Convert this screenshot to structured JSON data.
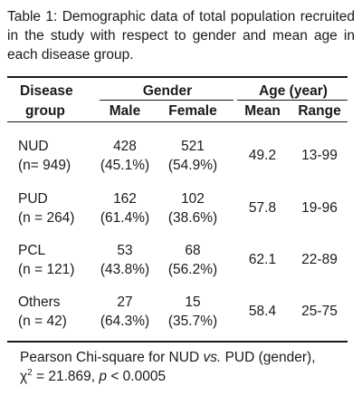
{
  "caption": "Table 1: Demographic data of total population recruited in the study with respect to gender and mean age in each disease group.",
  "headers": {
    "disease_line1": "Disease",
    "disease_line2": "group",
    "gender": "Gender",
    "age": "Age (year)",
    "male": "Male",
    "female": "Female",
    "mean": "Mean",
    "range": "Range"
  },
  "rows": [
    {
      "group": "NUD",
      "n": "(n= 949)",
      "male_count": "428",
      "male_pct": "(45.1%)",
      "female_count": "521",
      "female_pct": "(54.9%)",
      "mean": "49.2",
      "range": "13-99"
    },
    {
      "group": "PUD",
      "n": "(n = 264)",
      "male_count": "162",
      "male_pct": "(61.4%)",
      "female_count": "102",
      "female_pct": "(38.6%)",
      "mean": "57.8",
      "range": "19-96"
    },
    {
      "group": "PCL",
      "n": "(n = 121)",
      "male_count": "53",
      "male_pct": "(43.8%)",
      "female_count": "68",
      "female_pct": "(56.2%)",
      "mean": "62.1",
      "range": "22-89"
    },
    {
      "group": "Others",
      "n": "(n = 42)",
      "male_count": "27",
      "male_pct": "(64.3%)",
      "female_count": "15",
      "female_pct": "(35.7%)",
      "mean": "58.4",
      "range": "25-75"
    }
  ],
  "footnote": {
    "line1_pre": "Pearson Chi-square for NUD ",
    "line1_vs": "vs.",
    "line1_post": " PUD (gender),",
    "chi": "χ",
    "chi_sup": "2",
    "chi_value": " = 21.869, ",
    "p": "p",
    "p_value": " < 0.0005"
  }
}
